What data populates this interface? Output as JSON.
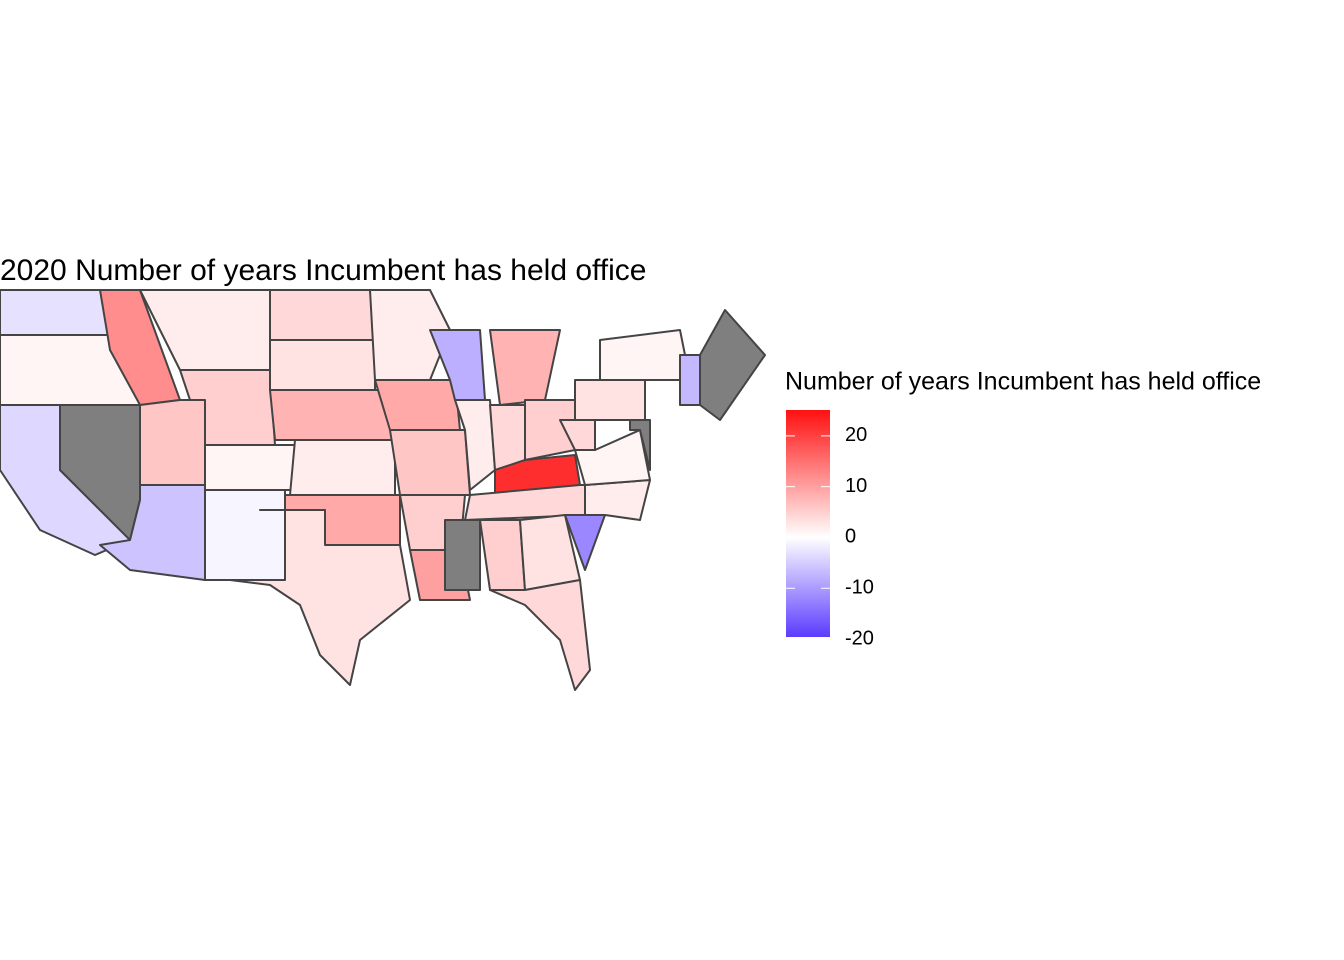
{
  "chart_data": {
    "type": "choropleth",
    "title": "2020 Number of years Incumbent has held office",
    "legend_title": "Number of years Incumbent has held office",
    "values": [
      -3,
      1,
      -4,
      null,
      12,
      2,
      5,
      6,
      1,
      -6,
      -1,
      4,
      3,
      8,
      2,
      9,
      3,
      2,
      9,
      6,
      5,
      10,
      -8,
      2,
      8,
      4,
      5,
      22,
      4,
      null,
      5,
      3,
      4,
      -12,
      2,
      1,
      4,
      3,
      1,
      null,
      -7,
      null
    ],
    "colorlim": [
      -19.6,
      25.1
    ],
    "colorticks": [
      20,
      10,
      0,
      -10,
      -20
    ],
    "colors": {
      "low": "#5b3bff",
      "mid": "#ffffff",
      "high": "#ff1010",
      "na": "#7f7f7f"
    },
    "border_color": "#444444"
  }
}
